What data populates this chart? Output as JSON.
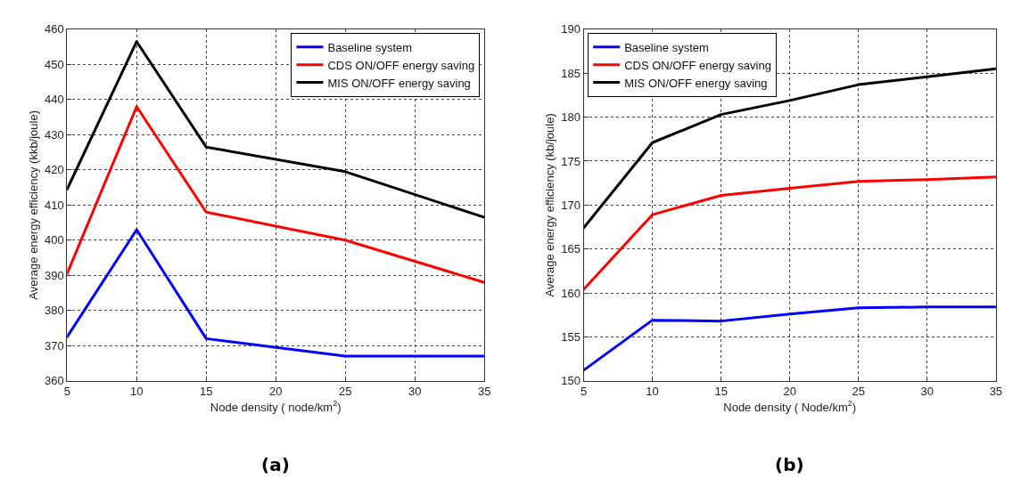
{
  "chart_data": [
    {
      "type": "line",
      "title": "(a)",
      "xlabel": "Node density ( node/km$^{2}$)",
      "ylabel": "Average energy efficiency (kkb/joule)",
      "x": [
        5,
        10,
        15,
        25,
        35
      ],
      "xlim": [
        5,
        35
      ],
      "xticks": [
        5,
        10,
        15,
        20,
        25,
        30,
        35
      ],
      "ylim": [
        360,
        460
      ],
      "yticks": [
        360,
        370,
        380,
        390,
        400,
        410,
        420,
        430,
        440,
        450,
        460
      ],
      "grid": true,
      "legend": "top right",
      "line_style": "solid",
      "series": [
        {
          "name": "Baseline system",
          "color": "#0000ff",
          "values": [
            372.5,
            403,
            372,
            367,
            367
          ]
        },
        {
          "name": "CDS ON/OFF energy saving",
          "color": "#ff0000",
          "values": [
            390.5,
            438,
            408,
            400,
            388
          ]
        },
        {
          "name": "MIS ON/OFF energy saving",
          "color": "#000000",
          "values": [
            414.5,
            456.5,
            426.5,
            419.5,
            406.5
          ]
        }
      ]
    },
    {
      "type": "line",
      "title": "(b)",
      "xlabel": "Node density ( Node/km$^{2}$)",
      "ylabel": "Average energy efficiency (kb/joule)",
      "x": [
        5,
        10,
        15,
        20,
        25,
        30,
        35
      ],
      "xlim": [
        5,
        35
      ],
      "xticks": [
        5,
        10,
        15,
        20,
        25,
        30,
        35
      ],
      "ylim": [
        150,
        190
      ],
      "yticks": [
        150,
        155,
        160,
        165,
        170,
        175,
        180,
        185,
        190
      ],
      "grid": true,
      "legend": "top left",
      "line_style": "solid",
      "series": [
        {
          "name": "Baseline system",
          "color": "#0000ff",
          "values": [
            151.2,
            156.9,
            156.8,
            157.6,
            158.3,
            158.4,
            158.4
          ]
        },
        {
          "name": "CDS ON/OFF energy saving",
          "color": "#ff0000",
          "values": [
            160.4,
            168.9,
            171.1,
            171.9,
            172.7,
            172.9,
            173.2
          ]
        },
        {
          "name": "MIS ON/OFF energy saving",
          "color": "#000000",
          "values": [
            167.4,
            177.1,
            180.3,
            181.9,
            183.7,
            184.6,
            185.5
          ]
        }
      ]
    }
  ]
}
